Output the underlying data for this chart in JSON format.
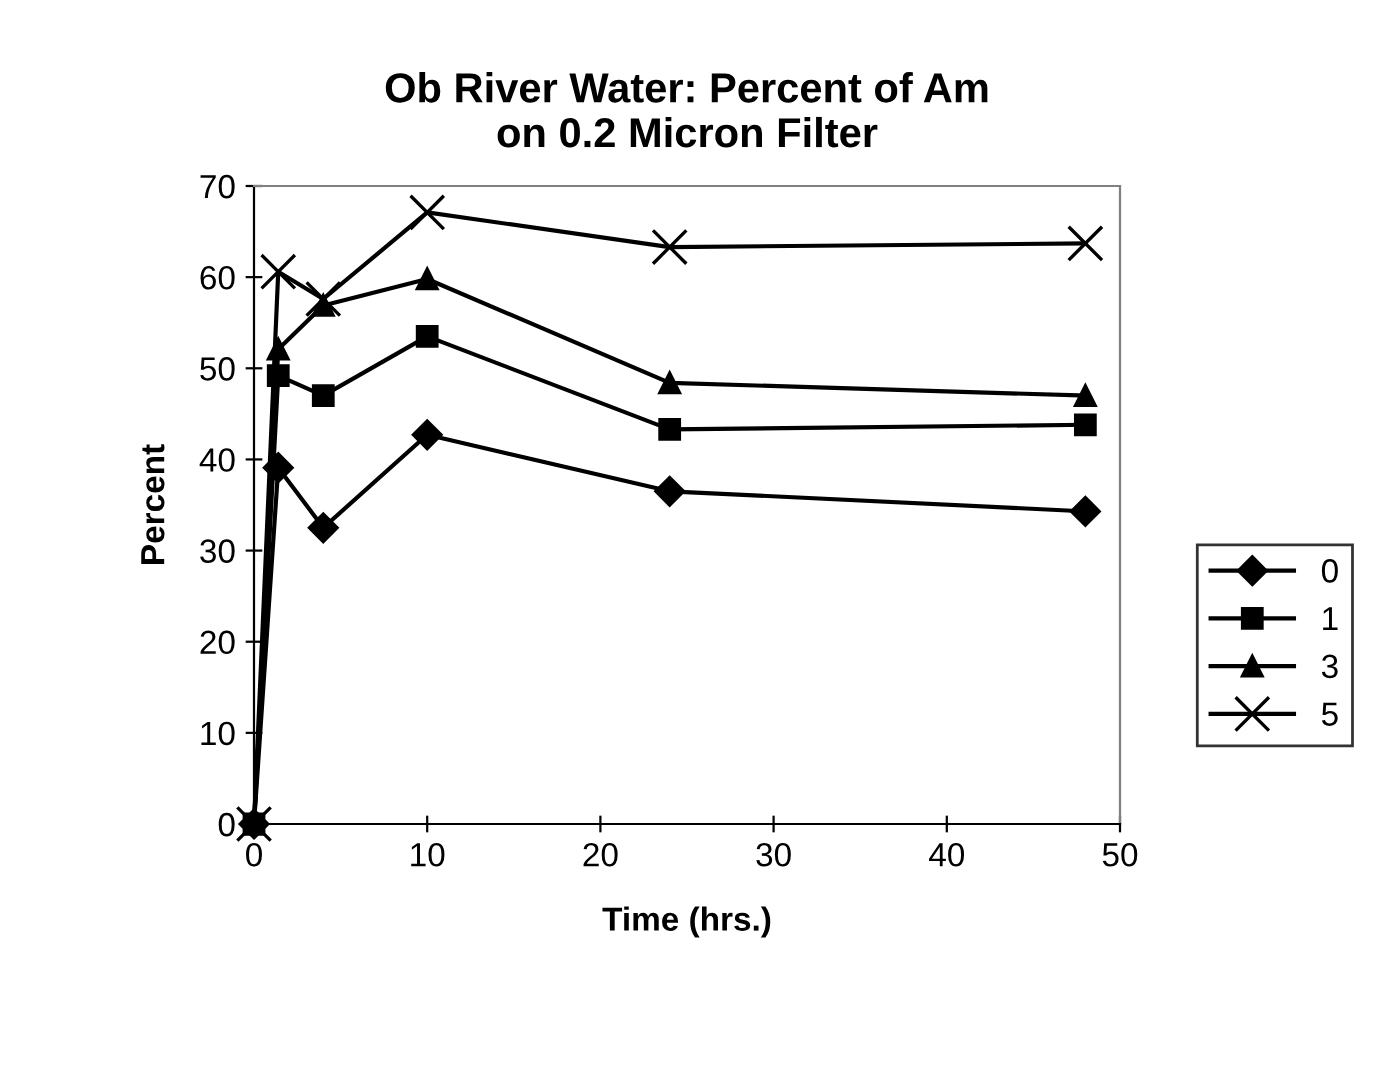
{
  "chart_data": {
    "type": "line",
    "title": "Ob River Water: Percent of Am\non 0.2 Micron Filter",
    "xlabel": "Time (hrs.)",
    "ylabel": "Percent",
    "x": [
      0,
      1.4,
      4,
      10,
      24,
      48
    ],
    "series": [
      {
        "name": "0",
        "color": "#000000",
        "marker": "diamond",
        "values": [
          0,
          39.1,
          32.5,
          42.7,
          36.5,
          34.3
        ]
      },
      {
        "name": "1",
        "color": "#000000",
        "marker": "square",
        "values": [
          0,
          49.2,
          47.0,
          53.5,
          43.3,
          43.8
        ]
      },
      {
        "name": "3",
        "color": "#000000",
        "marker": "triangle",
        "values": [
          0,
          52.1,
          56.9,
          59.8,
          48.4,
          47.0
        ]
      },
      {
        "name": "5",
        "color": "#000000",
        "marker": "cross",
        "values": [
          0,
          60.6,
          57.6,
          67.1,
          63.3,
          63.7
        ]
      }
    ],
    "xlim": [
      0,
      50
    ],
    "xticks": [
      0,
      10,
      20,
      30,
      40,
      50
    ],
    "ylim": [
      0,
      70
    ],
    "yticks": [
      0,
      10,
      20,
      30,
      40,
      50,
      60,
      70
    ],
    "grid": false,
    "legend": "right",
    "line_style": "solid"
  }
}
